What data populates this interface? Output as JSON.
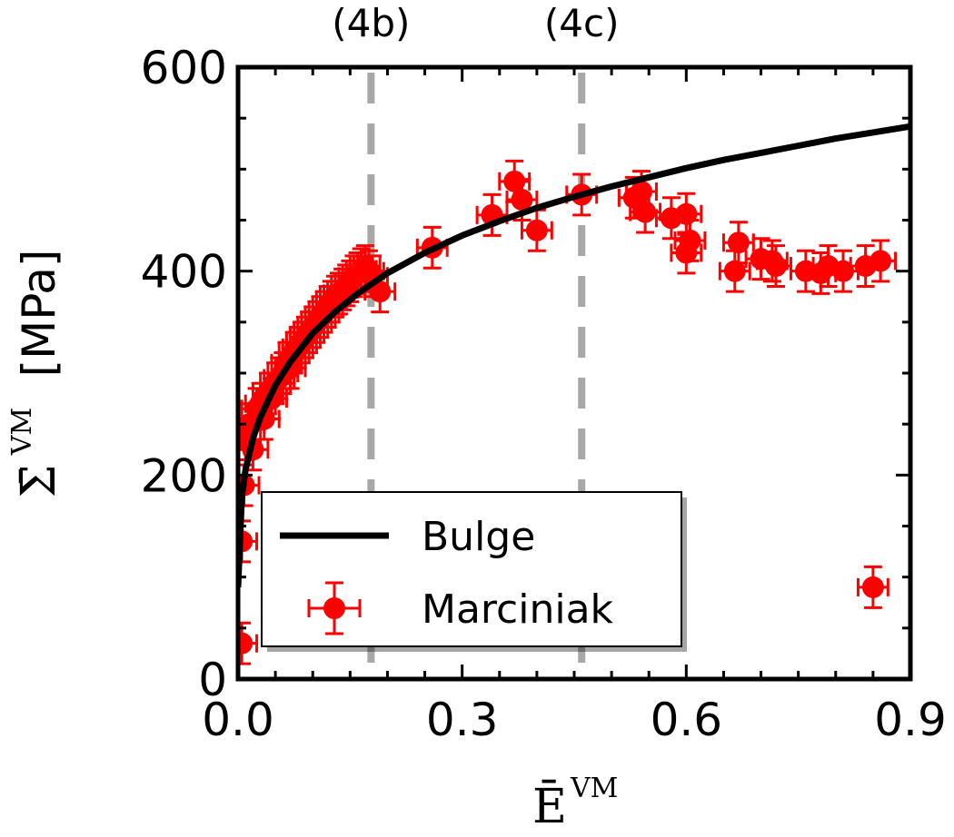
{
  "chart_data": {
    "type": "scatter",
    "title": "",
    "xlabel": "Ē",
    "xlabel_sup": "VM",
    "ylabel": "Σ̄",
    "ylabel_sup": "VM",
    "ylabel_unit": "[MPa]",
    "xlim": [
      0.0,
      0.9
    ],
    "ylim": [
      0,
      600
    ],
    "xticks": [
      0.0,
      0.3,
      0.6,
      0.9
    ],
    "xtick_labels": [
      "0.0",
      "0.3",
      "0.6",
      "0.9"
    ],
    "yticks": [
      0,
      200,
      400,
      600
    ],
    "ytick_labels": [
      "0",
      "200",
      "400",
      "600"
    ],
    "grid": false,
    "legend_position": "lower-left",
    "colors": {
      "bulge": "#000000",
      "marciniak": "#ff0000",
      "vline": "#999999"
    },
    "vlines": [
      {
        "label": "(4b)",
        "x": 0.178
      },
      {
        "label": "(4c)",
        "x": 0.46
      }
    ],
    "series": [
      {
        "name": "Bulge",
        "kind": "line",
        "model": "power-law fit of curve",
        "x": [
          0.0,
          0.005,
          0.01,
          0.02,
          0.03,
          0.05,
          0.07,
          0.1,
          0.13,
          0.16,
          0.2,
          0.25,
          0.3,
          0.35,
          0.4,
          0.45,
          0.5,
          0.55,
          0.6,
          0.65,
          0.7,
          0.75,
          0.8,
          0.85,
          0.9
        ],
        "y": [
          90,
          178,
          205,
          236,
          257,
          288,
          311,
          339,
          360,
          378,
          398,
          418,
          435,
          449,
          462,
          473,
          483,
          492,
          501,
          509,
          516,
          523,
          530,
          536,
          542
        ]
      },
      {
        "name": "Marciniak",
        "kind": "errorbar",
        "x": [
          0.005,
          0.005,
          0.008,
          0.01,
          0.015,
          0.02,
          0.025,
          0.03,
          0.035,
          0.04,
          0.045,
          0.05,
          0.055,
          0.06,
          0.065,
          0.07,
          0.075,
          0.08,
          0.085,
          0.09,
          0.095,
          0.1,
          0.105,
          0.11,
          0.115,
          0.12,
          0.125,
          0.13,
          0.135,
          0.14,
          0.145,
          0.15,
          0.155,
          0.16,
          0.165,
          0.17,
          0.175,
          0.18,
          0.19,
          0.26,
          0.34,
          0.37,
          0.38,
          0.4,
          0.46,
          0.53,
          0.54,
          0.545,
          0.58,
          0.6,
          0.605,
          0.6,
          0.665,
          0.67,
          0.7,
          0.72,
          0.715,
          0.76,
          0.78,
          0.79,
          0.81,
          0.84,
          0.86,
          0.85
        ],
        "y": [
          35,
          135,
          190,
          235,
          250,
          225,
          265,
          270,
          255,
          280,
          275,
          290,
          295,
          300,
          310,
          305,
          320,
          325,
          330,
          335,
          340,
          345,
          350,
          355,
          360,
          365,
          370,
          375,
          378,
          382,
          386,
          390,
          395,
          398,
          402,
          405,
          400,
          395,
          380,
          423,
          455,
          488,
          470,
          440,
          475,
          472,
          478,
          458,
          452,
          456,
          430,
          418,
          400,
          428,
          412,
          405,
          410,
          400,
          398,
          405,
          400,
          405,
          410,
          90
        ],
        "xerr": 0.02,
        "yerr": 20
      }
    ]
  }
}
